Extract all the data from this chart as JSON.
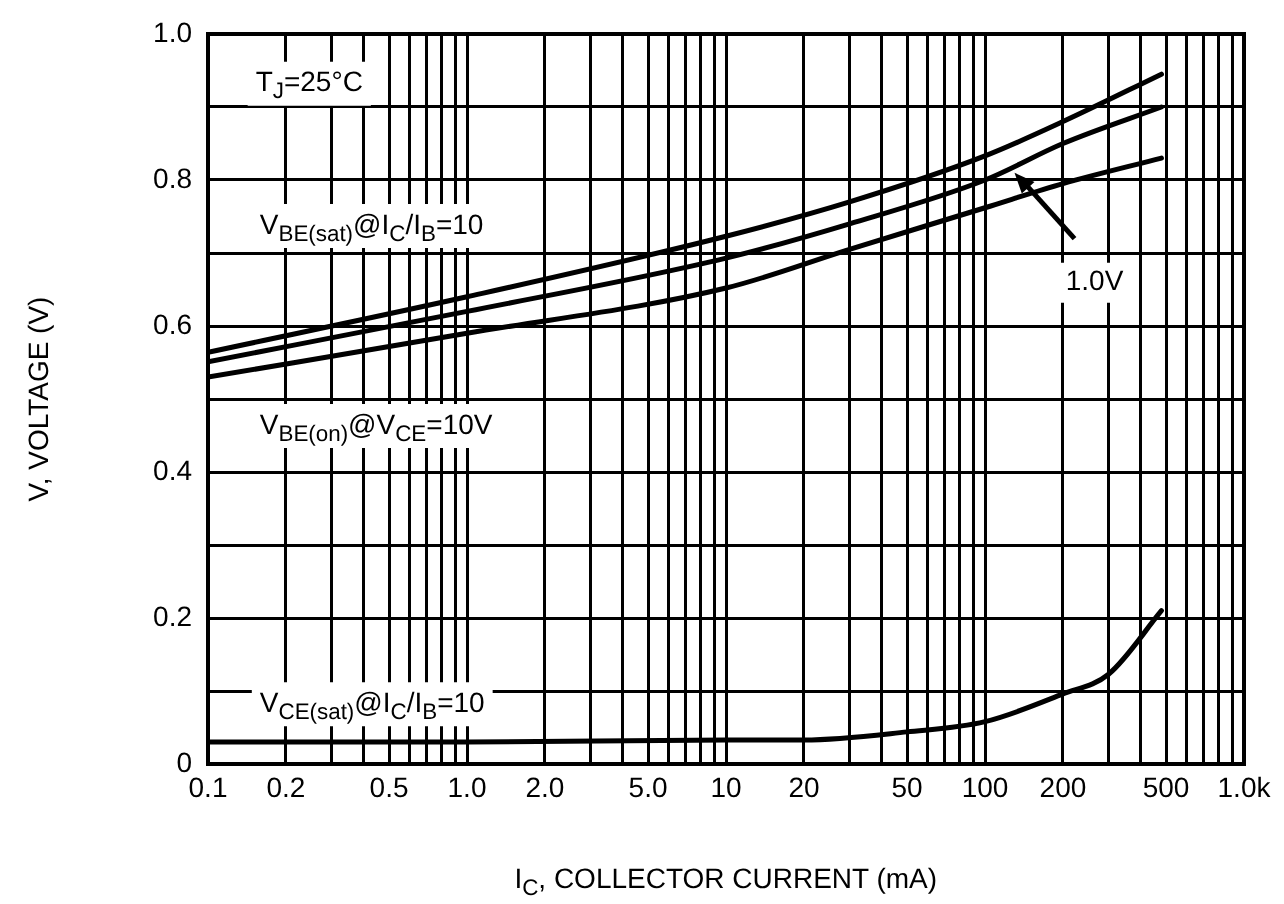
{
  "chart_data": {
    "type": "line",
    "xlabel": "I$_{C}$, COLLECTOR CURRENT (mA)",
    "ylabel": "V, VOLTAGE (V)",
    "log": "x",
    "grid": true,
    "legend": false,
    "marker": "none",
    "line_style": "solid",
    "xlim": [
      0.1,
      1000
    ],
    "ylim": [
      0,
      1
    ],
    "xticks": [
      0.1,
      0.2,
      {
        "value": 0.3,
        "label": null
      },
      {
        "value": 0.4,
        "label": null
      },
      0.5,
      {
        "value": 0.6,
        "label": null
      },
      {
        "value": 0.7,
        "label": null
      },
      {
        "value": 0.8,
        "label": null
      },
      {
        "value": 0.9,
        "label": null
      },
      {
        "value": 1,
        "label": "1.0"
      },
      {
        "value": 2,
        "label": "2.0"
      },
      {
        "value": 3,
        "label": null
      },
      {
        "value": 4,
        "label": null
      },
      {
        "value": 5,
        "label": "5.0"
      },
      {
        "value": 6,
        "label": null
      },
      {
        "value": 7,
        "label": null
      },
      {
        "value": 8,
        "label": null
      },
      {
        "value": 9,
        "label": null
      },
      10,
      20,
      {
        "value": 30,
        "label": null
      },
      {
        "value": 40,
        "label": null
      },
      50,
      {
        "value": 60,
        "label": null
      },
      {
        "value": 70,
        "label": null
      },
      {
        "value": 80,
        "label": null
      },
      {
        "value": 90,
        "label": null
      },
      100,
      200,
      {
        "value": 300,
        "label": null
      },
      {
        "value": 400,
        "label": null
      },
      500,
      {
        "value": 600,
        "label": null
      },
      {
        "value": 700,
        "label": null
      },
      {
        "value": 800,
        "label": null
      },
      {
        "value": 900,
        "label": null
      },
      {
        "value": 1000,
        "label": "1.0k"
      }
    ],
    "yticks": [
      0,
      {
        "value": 0.1,
        "label": null
      },
      0.2,
      {
        "value": 0.3,
        "label": null
      },
      0.4,
      {
        "value": 0.5,
        "label": null
      },
      0.6,
      {
        "value": 0.7,
        "label": null
      },
      0.8,
      {
        "value": 0.9,
        "label": null
      },
      {
        "value": 1,
        "label": "1.0"
      }
    ],
    "series": [
      {
        "color": "#000000",
        "x": [
          0.1,
          1,
          10,
          30,
          100,
          200,
          480
        ],
        "values": [
          0.564,
          0.64,
          0.723,
          0.77,
          0.833,
          0.88,
          0.945
        ]
      },
      {
        "color": "#000000",
        "x": [
          0.1,
          1,
          10,
          30,
          100,
          200,
          480
        ],
        "values": [
          0.551,
          0.62,
          0.693,
          0.74,
          0.8,
          0.85,
          0.9
        ]
      },
      {
        "color": "#000000",
        "x": [
          0.1,
          1,
          10,
          30,
          100,
          200,
          480
        ],
        "values": [
          0.53,
          0.59,
          0.652,
          0.705,
          0.762,
          0.795,
          0.83
        ]
      },
      {
        "color": "#000000",
        "x": [
          0.1,
          1,
          10,
          20,
          50,
          100,
          200,
          300,
          480
        ],
        "values": [
          0.03,
          0.03,
          0.033,
          0.033,
          0.044,
          0.058,
          0.096,
          0.123,
          0.21
        ]
      }
    ],
    "annotations": [
      "T$_{J}$=25°C",
      "V$_{BE(sat)}$@I$_{C}$/I$_{B}$=10",
      "V$_{BE(on)}$@V$_{CE}$=10V",
      "V$_{CE(sat)}$@I$_{C}$/I$_{B}$=10",
      {
        "text": "1.0V",
        "x": 130,
        "y": 0.81
      }
    ]
  }
}
